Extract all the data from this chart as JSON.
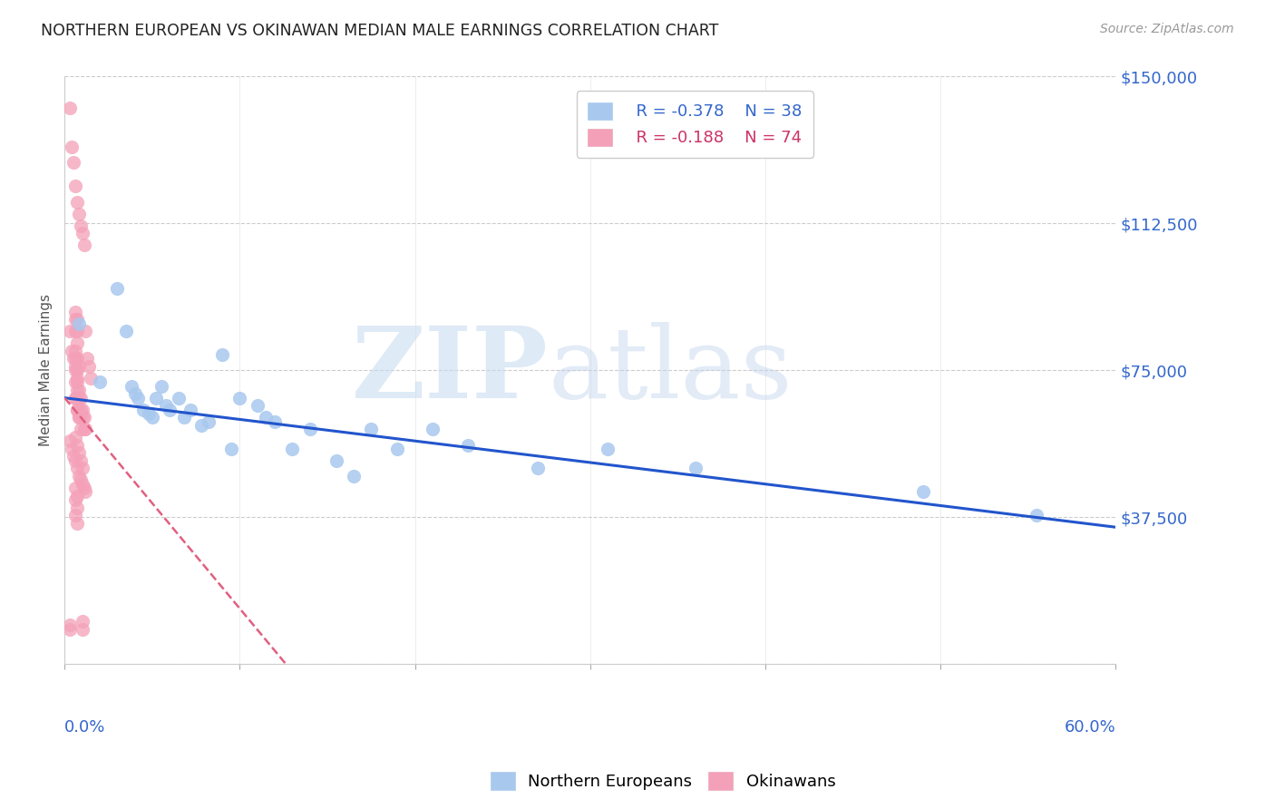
{
  "title": "NORTHERN EUROPEAN VS OKINAWAN MEDIAN MALE EARNINGS CORRELATION CHART",
  "source": "Source: ZipAtlas.com",
  "ylabel": "Median Male Earnings",
  "yticks": [
    0,
    37500,
    75000,
    112500,
    150000
  ],
  "ytick_labels": [
    "",
    "$37,500",
    "$75,000",
    "$112,500",
    "$150,000"
  ],
  "xlim": [
    0.0,
    0.6
  ],
  "ylim": [
    0,
    150000
  ],
  "legend_ne_r": "R = -0.378",
  "legend_ne_n": "N = 38",
  "legend_ok_r": "R = -0.188",
  "legend_ok_n": "N = 74",
  "ne_color": "#A8C8EE",
  "ok_color": "#F4A0B8",
  "ne_line_color": "#2255CC",
  "ok_line_color": "#E06080",
  "title_color": "#222222",
  "axis_label_color": "#3366CC",
  "grid_color": "#CCCCCC",
  "background_color": "#FFFFFF",
  "ne_points_x": [
    0.008,
    0.02,
    0.03,
    0.035,
    0.038,
    0.04,
    0.042,
    0.045,
    0.048,
    0.05,
    0.052,
    0.055,
    0.058,
    0.06,
    0.065,
    0.068,
    0.072,
    0.078,
    0.082,
    0.09,
    0.095,
    0.1,
    0.11,
    0.115,
    0.12,
    0.13,
    0.14,
    0.155,
    0.165,
    0.175,
    0.19,
    0.21,
    0.23,
    0.27,
    0.31,
    0.36,
    0.49,
    0.555
  ],
  "ne_points_y": [
    87000,
    72000,
    96000,
    85000,
    71000,
    69000,
    68000,
    65000,
    64000,
    63000,
    68000,
    71000,
    66000,
    65000,
    68000,
    63000,
    65000,
    61000,
    62000,
    79000,
    55000,
    68000,
    66000,
    63000,
    62000,
    55000,
    60000,
    52000,
    48000,
    60000,
    55000,
    60000,
    56000,
    50000,
    55000,
    50000,
    44000,
    38000
  ],
  "ok_points_x": [
    0.003,
    0.004,
    0.005,
    0.006,
    0.007,
    0.008,
    0.009,
    0.01,
    0.011,
    0.012,
    0.013,
    0.014,
    0.015,
    0.003,
    0.004,
    0.005,
    0.006,
    0.007,
    0.008,
    0.009,
    0.01,
    0.011,
    0.012,
    0.006,
    0.007,
    0.008,
    0.009,
    0.01,
    0.011,
    0.003,
    0.004,
    0.005,
    0.006,
    0.007,
    0.008,
    0.009,
    0.01,
    0.011,
    0.012,
    0.006,
    0.007,
    0.008,
    0.009,
    0.01,
    0.006,
    0.007,
    0.008,
    0.009,
    0.006,
    0.007,
    0.006,
    0.007,
    0.008,
    0.006,
    0.007,
    0.006,
    0.007,
    0.006,
    0.007,
    0.006,
    0.007,
    0.006,
    0.007,
    0.008,
    0.006,
    0.007,
    0.006,
    0.007,
    0.006,
    0.007,
    0.003,
    0.01,
    0.003,
    0.01
  ],
  "ok_points_y": [
    142000,
    132000,
    128000,
    122000,
    118000,
    115000,
    112000,
    110000,
    107000,
    85000,
    78000,
    76000,
    73000,
    85000,
    80000,
    78000,
    76000,
    73000,
    70000,
    68000,
    65000,
    63000,
    60000,
    72000,
    70000,
    68000,
    65000,
    63000,
    60000,
    57000,
    55000,
    53000,
    52000,
    50000,
    48000,
    47000,
    46000,
    45000,
    44000,
    58000,
    56000,
    54000,
    52000,
    50000,
    68000,
    65000,
    63000,
    60000,
    75000,
    72000,
    80000,
    78000,
    76000,
    85000,
    82000,
    88000,
    85000,
    90000,
    88000,
    78000,
    75000,
    68000,
    65000,
    63000,
    45000,
    43000,
    42000,
    40000,
    38000,
    36000,
    9000,
    9000,
    10000,
    11000
  ]
}
